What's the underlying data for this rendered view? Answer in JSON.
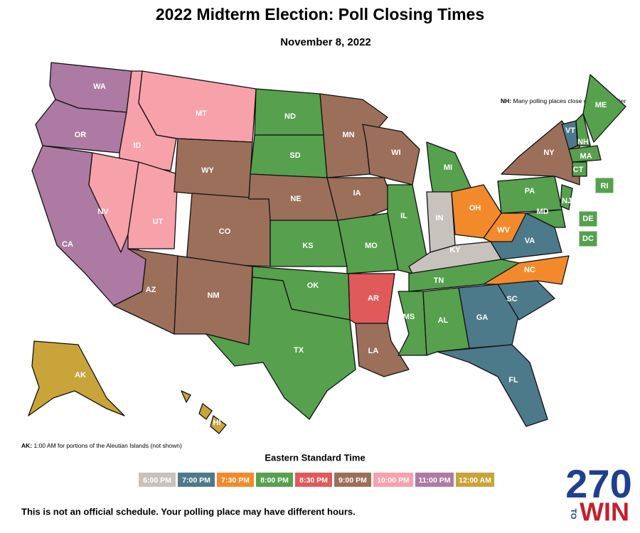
{
  "header": {
    "title": "2022 Midterm Election: Poll Closing Times",
    "subtitle": "November 8, 2022"
  },
  "legend": {
    "title": "Eastern Standard Time",
    "items": [
      {
        "label": "6:00 PM",
        "color": "#c8c2bc"
      },
      {
        "label": "7:00 PM",
        "color": "#4d7a8a"
      },
      {
        "label": "7:30 PM",
        "color": "#f28a2b"
      },
      {
        "label": "8:00 PM",
        "color": "#56a04e"
      },
      {
        "label": "8:30 PM",
        "color": "#e05a5a"
      },
      {
        "label": "9:00 PM",
        "color": "#9b6f5a"
      },
      {
        "label": "10:00 PM",
        "color": "#f7a1ab"
      },
      {
        "label": "11:00 PM",
        "color": "#ad7aa3"
      },
      {
        "label": "12:00 AM",
        "color": "#c9a43a"
      }
    ]
  },
  "states": [
    {
      "label": "WA",
      "time": 7
    },
    {
      "label": "OR",
      "time": 7
    },
    {
      "label": "CA",
      "time": 7
    },
    {
      "label": "ID",
      "time": 6
    },
    {
      "label": "NV",
      "time": 6
    },
    {
      "label": "UT",
      "time": 6
    },
    {
      "label": "MT",
      "time": 6
    },
    {
      "label": "WY",
      "time": 5
    },
    {
      "label": "CO",
      "time": 5
    },
    {
      "label": "AZ",
      "time": 5
    },
    {
      "label": "NM",
      "time": 5
    },
    {
      "label": "ND",
      "time": 3
    },
    {
      "label": "SD",
      "time": 3
    },
    {
      "label": "NE",
      "time": 5
    },
    {
      "label": "KS",
      "time": 3
    },
    {
      "label": "OK",
      "time": 3
    },
    {
      "label": "TX",
      "time": 3
    },
    {
      "label": "MN",
      "time": 5
    },
    {
      "label": "IA",
      "time": 5
    },
    {
      "label": "MO",
      "time": 3
    },
    {
      "label": "AR",
      "time": 4
    },
    {
      "label": "LA",
      "time": 5
    },
    {
      "label": "WI",
      "time": 5
    },
    {
      "label": "IL",
      "time": 3
    },
    {
      "label": "MI",
      "time": 3
    },
    {
      "label": "IN",
      "time": 0
    },
    {
      "label": "OH",
      "time": 2
    },
    {
      "label": "KY",
      "time": 0
    },
    {
      "label": "TN",
      "time": 3
    },
    {
      "label": "MS",
      "time": 3
    },
    {
      "label": "AL",
      "time": 3
    },
    {
      "label": "GA",
      "time": 1
    },
    {
      "label": "FL",
      "time": 1
    },
    {
      "label": "SC",
      "time": 1
    },
    {
      "label": "NC",
      "time": 2
    },
    {
      "label": "VA",
      "time": 1
    },
    {
      "label": "WV",
      "time": 2
    },
    {
      "label": "PA",
      "time": 3
    },
    {
      "label": "NY",
      "time": 5
    },
    {
      "label": "VT",
      "time": 1
    },
    {
      "label": "NH",
      "time": 3
    },
    {
      "label": "ME",
      "time": 3
    },
    {
      "label": "MA",
      "time": 3
    },
    {
      "label": "CT",
      "time": 3
    },
    {
      "label": "NJ",
      "time": 3
    },
    {
      "label": "MD",
      "time": 3
    },
    {
      "label": "RI",
      "time": 3
    },
    {
      "label": "DE",
      "time": 3
    },
    {
      "label": "DC",
      "time": 3
    },
    {
      "label": "AK",
      "time": 8
    },
    {
      "label": "HI",
      "time": 8
    }
  ],
  "notes": [
    {
      "bold": "NH:",
      "text": "Many polling places close one hour earlier"
    },
    {
      "bold": "AK:",
      "text": "1:00 AM for portions of the Aleutian Islands (not shown)"
    }
  ],
  "footer": "This is not an official schedule. Your polling place may have different hours.",
  "logo": {
    "number": "270",
    "to": "TO",
    "win": "WIN"
  }
}
